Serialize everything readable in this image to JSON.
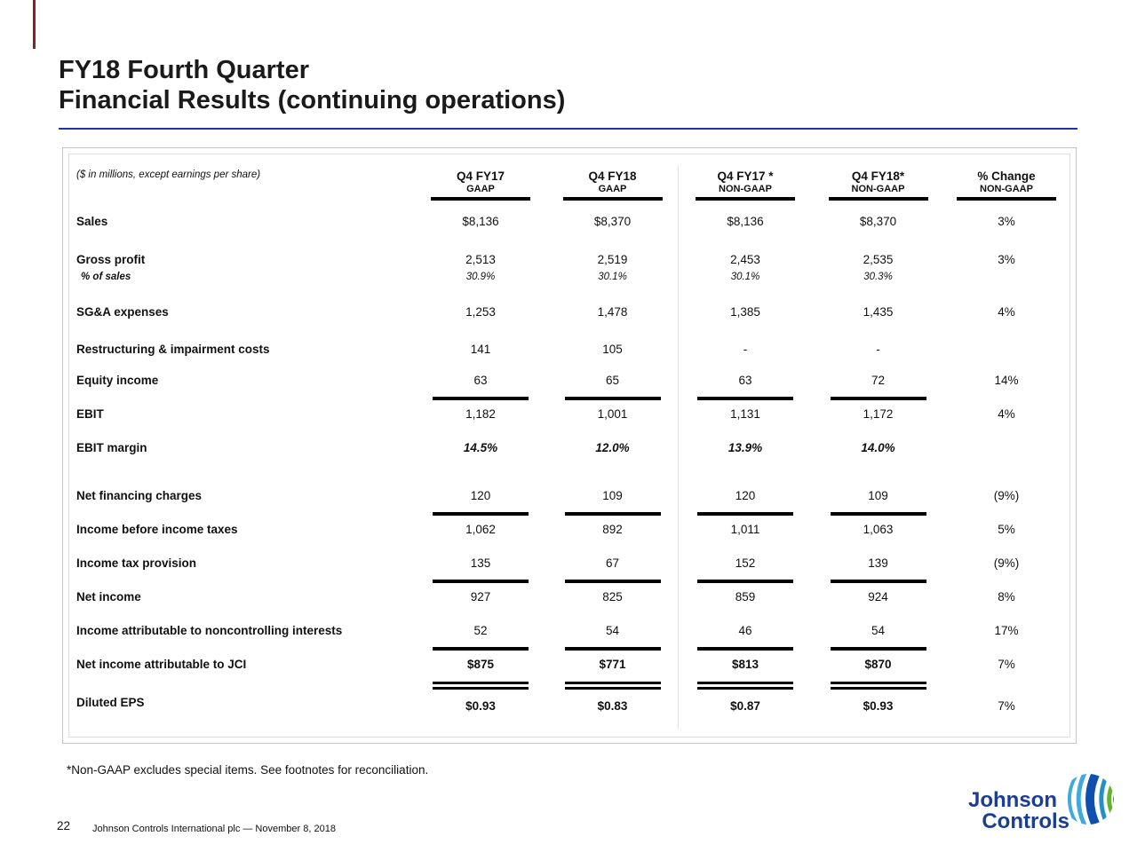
{
  "slide": {
    "title_line1": "FY18 Fourth Quarter",
    "title_line2": "Financial Results (continuing operations)",
    "footnote": "*Non-GAAP excludes special items. See footnotes for reconciliation.",
    "page_number": "22",
    "footer_text": "Johnson Controls International plc  —  November 8, 2018"
  },
  "logo": {
    "word1": "Johnson",
    "word2": "Controls",
    "text_color": "#1b3e94",
    "mark_colors": [
      "#41aadd",
      "#0f50ae",
      "#2491c6",
      "#63b32e",
      "#2f9e41"
    ]
  },
  "colors": {
    "title_rule_blue": "#2330a8",
    "red_marker": "#8b2024",
    "table_border": "#c4c4c4",
    "line_black": "#000000"
  },
  "table": {
    "units_note": "($ in millions, except earnings per share)",
    "columns": [
      {
        "line1": "Q4 FY17",
        "line2": "GAAP"
      },
      {
        "line1": "Q4 FY18",
        "line2": "GAAP"
      },
      {
        "line1": "Q4 FY17 *",
        "line2": "NON-GAAP"
      },
      {
        "line1": "Q4 FY18*",
        "line2": "NON-GAAP"
      },
      {
        "line1": "% Change",
        "line2": "NON-GAAP"
      }
    ],
    "rows": [
      {
        "label": "Sales",
        "values": [
          "$8,136",
          "$8,370",
          "$8,136",
          "$8,370",
          "3%"
        ],
        "style": "normal",
        "line_above": "none"
      },
      {
        "label": "Gross profit",
        "values": [
          "2,513",
          "2,519",
          "2,453",
          "2,535",
          "3%"
        ],
        "style": "normal",
        "line_above": "none"
      },
      {
        "label": "% of sales",
        "values": [
          "30.9%",
          "30.1%",
          "30.1%",
          "30.3%",
          ""
        ],
        "style": "sub-italic",
        "line_above": "none"
      },
      {
        "label": "SG&A expenses",
        "values": [
          "1,253",
          "1,478",
          "1,385",
          "1,435",
          "4%"
        ],
        "style": "normal",
        "line_above": "none"
      },
      {
        "label": "Restructuring & impairment costs",
        "values": [
          "141",
          "105",
          "-",
          "-",
          ""
        ],
        "style": "normal",
        "line_above": "none"
      },
      {
        "label": "Equity income",
        "values": [
          "63",
          "65",
          "63",
          "72",
          "14%"
        ],
        "style": "normal",
        "line_above": "none"
      },
      {
        "label": "EBIT",
        "values": [
          "1,182",
          "1,001",
          "1,131",
          "1,172",
          "4%"
        ],
        "style": "normal",
        "line_above": "single"
      },
      {
        "label": "EBIT margin",
        "values": [
          "14.5%",
          "12.0%",
          "13.9%",
          "14.0%",
          ""
        ],
        "style": "bold-italic",
        "line_above": "none"
      },
      {
        "label": "Net financing charges",
        "values": [
          "120",
          "109",
          "120",
          "109",
          "(9%)"
        ],
        "style": "normal",
        "line_above": "none"
      },
      {
        "label": "Income before income taxes",
        "values": [
          "1,062",
          "892",
          "1,011",
          "1,063",
          "5%"
        ],
        "style": "normal",
        "line_above": "single"
      },
      {
        "label": "Income tax provision",
        "values": [
          "135",
          "67",
          "152",
          "139",
          "(9%)"
        ],
        "style": "normal",
        "line_above": "none"
      },
      {
        "label": "Net income",
        "values": [
          "927",
          "825",
          "859",
          "924",
          "8%"
        ],
        "style": "normal",
        "line_above": "single"
      },
      {
        "label": "Income attributable to noncontrolling interests",
        "values": [
          "52",
          "54",
          "46",
          "54",
          "17%"
        ],
        "style": "normal",
        "line_above": "none"
      },
      {
        "label": "Net income attributable to JCI",
        "values": [
          "$875",
          "$771",
          "$813",
          "$870",
          "7%"
        ],
        "style": "bold-values",
        "line_above": "single"
      },
      {
        "label": "Diluted EPS",
        "values": [
          "$0.93",
          "$0.83",
          "$0.87",
          "$0.93",
          "7%"
        ],
        "style": "bold-values",
        "line_above": "double"
      }
    ]
  }
}
